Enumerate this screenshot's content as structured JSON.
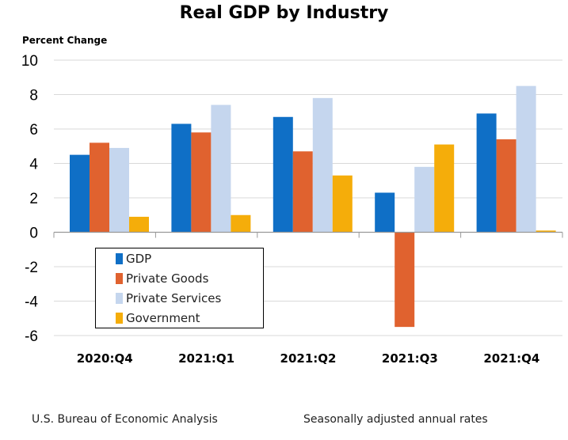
{
  "chart_data": {
    "type": "bar",
    "title": "Real GDP by Industry",
    "ylabel": "Percent Change",
    "xlabel": "",
    "ylim": [
      -6,
      10
    ],
    "yticks": [
      10,
      8,
      6,
      4,
      2,
      0,
      -2,
      -4,
      -6
    ],
    "grid": true,
    "legend_placement": "bottom-left",
    "categories": [
      "2020:Q4",
      "2021:Q1",
      "2021:Q2",
      "2021:Q3",
      "2021:Q4"
    ],
    "series": [
      {
        "name": "GDP",
        "color": "#0f6fc6",
        "values": [
          4.5,
          6.3,
          6.7,
          2.3,
          6.9
        ]
      },
      {
        "name": "Private Goods",
        "color": "#e0622f",
        "values": [
          5.2,
          5.8,
          4.7,
          -5.5,
          5.4
        ]
      },
      {
        "name": "Private Services",
        "color": "#c5d6ee",
        "values": [
          4.9,
          7.4,
          7.8,
          3.8,
          8.5
        ]
      },
      {
        "name": "Government",
        "color": "#f5ad0a",
        "values": [
          0.9,
          1.0,
          3.3,
          5.1,
          0.1
        ]
      }
    ]
  },
  "footer": {
    "source": "U.S. Bureau of Economic Analysis",
    "note": "Seasonally adjusted annual rates"
  }
}
